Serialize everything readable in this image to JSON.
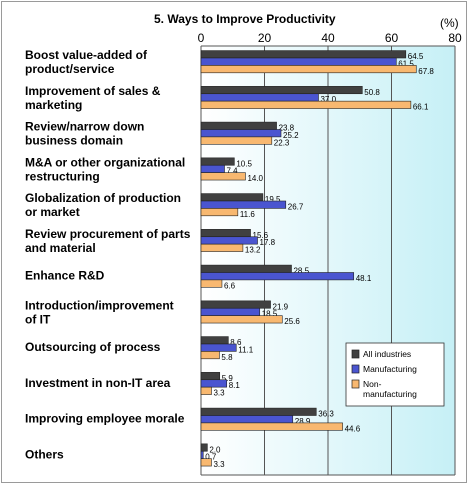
{
  "chart_data": {
    "type": "bar",
    "orientation": "horizontal",
    "title": "5. Ways to Improve Productivity",
    "unit": "(%)",
    "xlim": [
      0,
      80
    ],
    "xticks": [
      0,
      20,
      40,
      60,
      80
    ],
    "grid": true,
    "legend_position": "right",
    "colors": {
      "all": "#404040",
      "mfg": "#4a55d0",
      "non": "#f8b870",
      "plot_bg_left": "#ffffff",
      "plot_bg_right": "#c6f0f6"
    },
    "categories": [
      [
        "Boost value-added of",
        "product/service"
      ],
      [
        "Improvement of sales &",
        "marketing"
      ],
      [
        "Review/narrow down",
        "business domain"
      ],
      [
        "M&A or other  organizational",
        "restructuring"
      ],
      [
        "Globalization of production",
        "or market"
      ],
      [
        "Review procurement of parts",
        "and material"
      ],
      [
        "Enhance R&D"
      ],
      [
        "Introduction/improvement",
        "of IT"
      ],
      [
        "Outsourcing of process"
      ],
      [
        "Investment in non-IT area"
      ],
      [
        "Improving employee morale"
      ],
      [
        "Others"
      ]
    ],
    "series": [
      {
        "name": "All industries",
        "key": "all",
        "values": [
          64.5,
          50.8,
          23.8,
          10.5,
          19.5,
          15.6,
          28.5,
          21.9,
          8.6,
          5.9,
          36.3,
          2.0
        ],
        "labels": [
          "64.5",
          "50.8",
          "23.8",
          "10.5",
          "19.5",
          "15.6",
          "28.5",
          "21.9",
          "8.6",
          "5.9",
          "36.3",
          "2.0"
        ]
      },
      {
        "name": "Manufacturing",
        "key": "mfg",
        "values": [
          61.5,
          37.0,
          25.2,
          7.4,
          26.7,
          17.8,
          48.1,
          18.5,
          11.1,
          8.1,
          28.9,
          0.7
        ],
        "labels": [
          "61.5",
          "37.0",
          "25.2",
          "7.4",
          "26.7",
          "17.8",
          "48.1",
          "18.5",
          "11.1",
          "8.1",
          "28.9",
          "0.7"
        ]
      },
      {
        "name": [
          "Non-",
          "manufacturing"
        ],
        "key": "non",
        "values": [
          67.8,
          66.1,
          22.3,
          14.0,
          11.6,
          13.2,
          6.6,
          25.6,
          5.8,
          3.3,
          44.6,
          3.3
        ],
        "labels": [
          "67.8",
          "66.1",
          "22.3",
          "14.0",
          "11.6",
          "13.2",
          "6.6",
          "25.6",
          "5.8",
          "3.3",
          "44.6",
          "3.3"
        ]
      }
    ]
  }
}
